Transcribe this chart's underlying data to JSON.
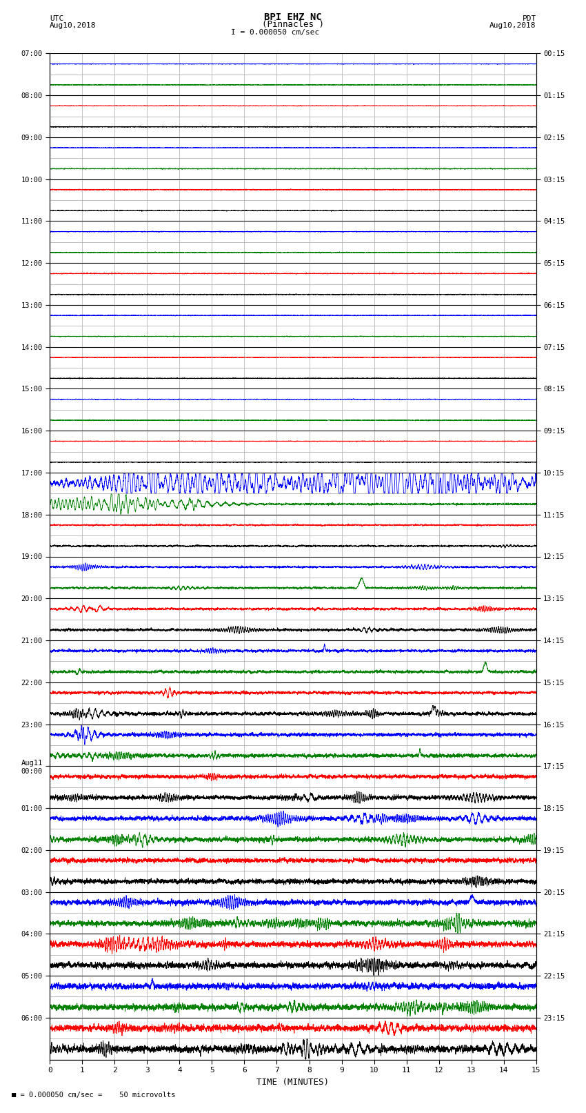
{
  "title_line1": "BPI EHZ NC",
  "title_line2": "(Pinnacles )",
  "scale_text": "I = 0.000050 cm/sec",
  "utc_label": "UTC",
  "utc_date": "Aug10,2018",
  "pdt_label": "PDT",
  "pdt_date": "Aug10,2018",
  "bottom_label": "TIME (MINUTES)",
  "bottom_note": "= 0.000050 cm/sec =    50 microvolts",
  "xlim": [
    0,
    15
  ],
  "xticks": [
    0,
    1,
    2,
    3,
    4,
    5,
    6,
    7,
    8,
    9,
    10,
    11,
    12,
    13,
    14,
    15
  ],
  "utc_times_labeled": [
    "07:00",
    "08:00",
    "09:00",
    "10:00",
    "11:00",
    "12:00",
    "13:00",
    "14:00",
    "15:00",
    "16:00",
    "17:00",
    "18:00",
    "19:00",
    "20:00",
    "21:00",
    "22:00",
    "23:00",
    "Aug11\n00:00",
    "01:00",
    "02:00",
    "03:00",
    "04:00",
    "05:00",
    "06:00"
  ],
  "pdt_times_labeled": [
    "00:15",
    "01:15",
    "02:15",
    "03:15",
    "04:15",
    "05:15",
    "06:15",
    "07:15",
    "08:15",
    "09:15",
    "10:15",
    "11:15",
    "12:15",
    "13:15",
    "14:15",
    "15:15",
    "16:15",
    "17:15",
    "18:15",
    "19:15",
    "20:15",
    "21:15",
    "22:15",
    "23:15"
  ],
  "n_rows": 48,
  "colors_cycle": [
    "blue",
    "green",
    "red",
    "black"
  ],
  "bg_color": "#ffffff",
  "minor_grid_color": "#bbbbbb",
  "major_grid_color": "#000000"
}
